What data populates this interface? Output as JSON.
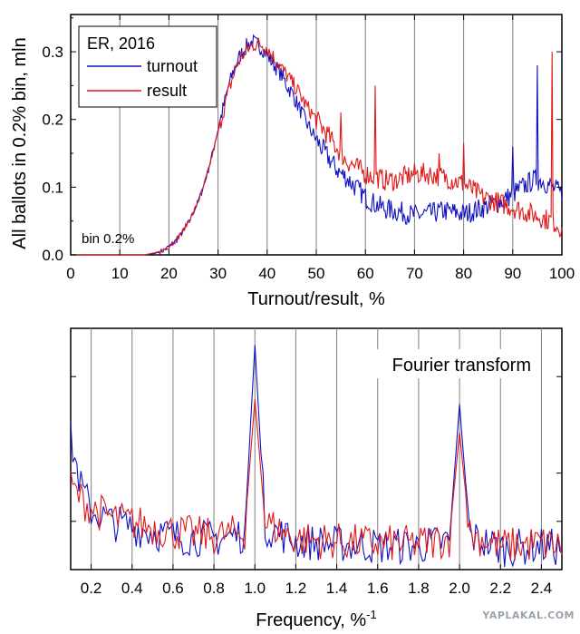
{
  "watermark": "YAPLAKAL.COM",
  "chart_data": [
    {
      "type": "line",
      "xlabel": "Turnout/result, %",
      "ylabel": "All ballots in 0.2% bin, mln",
      "xlim": [
        0,
        100
      ],
      "ylim": [
        0,
        0.355
      ],
      "xticks": [
        "0",
        "10",
        "20",
        "30",
        "40",
        "50",
        "60",
        "70",
        "80",
        "90",
        "100"
      ],
      "yticks": [
        "0.0",
        "0.1",
        "0.2",
        "0.3"
      ],
      "grid": "vertical",
      "legend_title": "ER, 2016",
      "legend_position": "top-left",
      "annotation": "bin 0.2%",
      "colors": {
        "turnout": "#1010c0",
        "result": "#e01818"
      },
      "series": [
        {
          "name": "turnout",
          "x": [
            0,
            10,
            15,
            17,
            18,
            19,
            20,
            21,
            22,
            23,
            24,
            25,
            26,
            27,
            28,
            29,
            30,
            31,
            32,
            33,
            34,
            35,
            36,
            37,
            38,
            39,
            40,
            41,
            42,
            43,
            44,
            45,
            46,
            47,
            48,
            50,
            52,
            54,
            55,
            56,
            58,
            60,
            62,
            64,
            66,
            68,
            70,
            72,
            74,
            76,
            78,
            80,
            82,
            84,
            86,
            88,
            90,
            92,
            94,
            96,
            97,
            98,
            99,
            100
          ],
          "y": [
            0,
            0,
            0,
            0.002,
            0.004,
            0.007,
            0.012,
            0.018,
            0.026,
            0.036,
            0.048,
            0.063,
            0.08,
            0.1,
            0.125,
            0.155,
            0.185,
            0.215,
            0.245,
            0.268,
            0.288,
            0.3,
            0.31,
            0.315,
            0.31,
            0.305,
            0.295,
            0.285,
            0.275,
            0.265,
            0.25,
            0.24,
            0.225,
            0.21,
            0.195,
            0.17,
            0.148,
            0.128,
            0.12,
            0.115,
            0.1,
            0.085,
            0.075,
            0.068,
            0.065,
            0.062,
            0.058,
            0.06,
            0.062,
            0.065,
            0.063,
            0.06,
            0.065,
            0.07,
            0.075,
            0.08,
            0.09,
            0.1,
            0.11,
            0.11,
            0.105,
            0.1,
            0.095,
            0.09
          ]
        },
        {
          "name": "result",
          "x": [
            0,
            10,
            15,
            17,
            18,
            19,
            20,
            21,
            22,
            23,
            24,
            25,
            26,
            27,
            28,
            29,
            30,
            31,
            32,
            33,
            34,
            35,
            36,
            37,
            38,
            39,
            40,
            41,
            42,
            43,
            44,
            45,
            46,
            47,
            48,
            50,
            52,
            54,
            55,
            56,
            58,
            60,
            62,
            64,
            66,
            68,
            70,
            72,
            74,
            76,
            78,
            80,
            82,
            84,
            86,
            88,
            90,
            92,
            94,
            96,
            97,
            98,
            99,
            100
          ],
          "y": [
            0,
            0,
            0,
            0.003,
            0.005,
            0.008,
            0.013,
            0.019,
            0.027,
            0.037,
            0.049,
            0.063,
            0.08,
            0.1,
            0.124,
            0.152,
            0.18,
            0.21,
            0.238,
            0.262,
            0.282,
            0.295,
            0.303,
            0.31,
            0.312,
            0.31,
            0.305,
            0.295,
            0.285,
            0.275,
            0.265,
            0.255,
            0.245,
            0.232,
            0.22,
            0.2,
            0.18,
            0.16,
            0.15,
            0.14,
            0.13,
            0.12,
            0.115,
            0.11,
            0.11,
            0.115,
            0.12,
            0.12,
            0.118,
            0.115,
            0.11,
            0.105,
            0.095,
            0.085,
            0.08,
            0.075,
            0.07,
            0.065,
            0.06,
            0.055,
            0.052,
            0.05,
            0.045,
            0.04
          ]
        }
      ],
      "spikes": [
        {
          "series": "result",
          "x": 55,
          "y": 0.21
        },
        {
          "series": "result",
          "x": 62,
          "y": 0.25
        },
        {
          "series": "result",
          "x": 75,
          "y": 0.15
        },
        {
          "series": "result",
          "x": 80,
          "y": 0.165
        },
        {
          "series": "turnout",
          "x": 90,
          "y": 0.16
        },
        {
          "series": "turnout",
          "x": 95,
          "y": 0.28
        },
        {
          "series": "result",
          "x": 98,
          "y": 0.3
        }
      ]
    },
    {
      "type": "line",
      "title": "Fourier transform",
      "xlabel": "Frequency, %",
      "xlabel_superscript": "-1",
      "xlim": [
        0.1,
        2.5
      ],
      "xticks": [
        "0.2",
        "0.4",
        "0.6",
        "0.8",
        "1.0",
        "1.2",
        "1.4",
        "1.6",
        "1.8",
        "2.0",
        "2.2",
        "2.4"
      ],
      "grid": "vertical",
      "ylabel": "",
      "colors": {
        "turnout": "#1010c0",
        "result": "#e01818"
      },
      "series": [
        {
          "name": "turnout",
          "x": [
            0.1,
            0.15,
            0.2,
            0.3,
            0.4,
            0.6,
            0.8,
            0.95,
            1.0,
            1.05,
            1.2,
            1.4,
            1.6,
            1.8,
            1.95,
            2.0,
            2.05,
            2.2,
            2.4,
            2.5
          ],
          "y": [
            0.55,
            0.35,
            0.25,
            0.2,
            0.18,
            0.14,
            0.13,
            0.15,
            0.95,
            0.18,
            0.12,
            0.11,
            0.1,
            0.1,
            0.12,
            0.7,
            0.14,
            0.09,
            0.1,
            0.09
          ]
        },
        {
          "name": "result",
          "x": [
            0.1,
            0.15,
            0.2,
            0.3,
            0.4,
            0.6,
            0.8,
            0.95,
            1.0,
            1.05,
            1.2,
            1.4,
            1.6,
            1.8,
            1.95,
            2.0,
            2.05,
            2.2,
            2.4,
            2.5
          ],
          "y": [
            0.35,
            0.3,
            0.26,
            0.22,
            0.2,
            0.16,
            0.14,
            0.16,
            0.72,
            0.2,
            0.13,
            0.12,
            0.11,
            0.11,
            0.13,
            0.58,
            0.15,
            0.1,
            0.11,
            0.1
          ]
        }
      ]
    }
  ]
}
